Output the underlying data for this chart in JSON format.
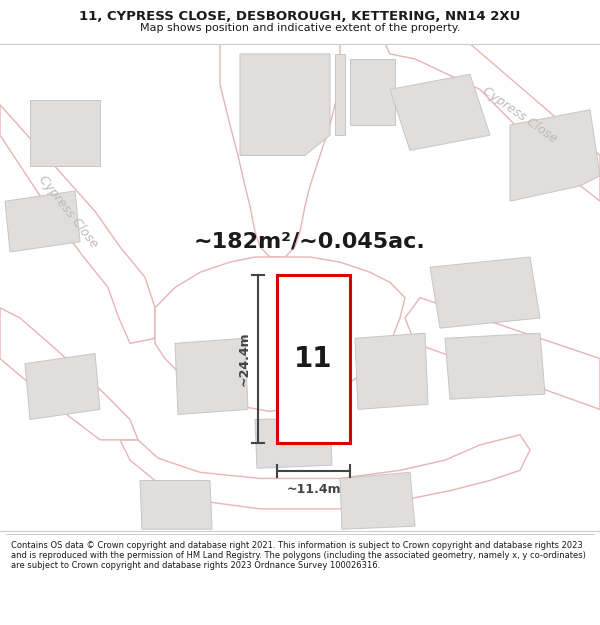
{
  "title_line1": "11, CYPRESS CLOSE, DESBOROUGH, KETTERING, NN14 2XU",
  "title_line2": "Map shows position and indicative extent of the property.",
  "area_text": "~182m²/~0.045ac.",
  "dim_height": "~24.4m",
  "dim_width": "~11.4m",
  "property_number": "11",
  "footer_text": "Contains OS data © Crown copyright and database right 2021. This information is subject to Crown copyright and database rights 2023 and is reproduced with the permission of HM Land Registry. The polygons (including the associated geometry, namely x, y co-ordinates) are subject to Crown copyright and database rights 2023 Ordnance Survey 100026316.",
  "map_bg": "#f7f6f4",
  "road_fill": "#ffffff",
  "road_edge": "#e8b4b4",
  "building_fill": "#e0dedd",
  "building_edge": "#c8c5c2",
  "property_fill": "#ffffff",
  "property_edge": "#dd0000",
  "dim_line_color": "#444444",
  "text_color": "#1a1a1a",
  "label_color": "#c0b8b8",
  "footer_divider": "#cccccc",
  "white": "#ffffff",
  "title_fontsize": 9.5,
  "subtitle_fontsize": 8.0,
  "area_fontsize": 16,
  "num_fontsize": 20,
  "dim_fontsize": 9,
  "label_fontsize": 9
}
